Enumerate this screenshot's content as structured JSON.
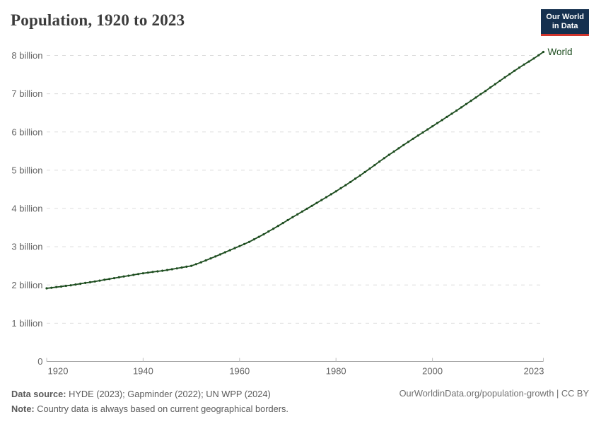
{
  "header": {
    "title": "Population, 1920 to 2023",
    "logo": {
      "line1": "Our World",
      "line2": "in Data",
      "bg_color": "#15304f",
      "accent_color": "#d0342c"
    }
  },
  "chart_data": {
    "type": "line",
    "title": "Population, 1920 to 2023",
    "xlabel": "",
    "ylabel": "",
    "xlim": [
      1920,
      2023
    ],
    "ylim": [
      0,
      8.3
    ],
    "grid": "horizontal-dashed",
    "legend_position": "end-of-line-label",
    "x_ticks": [
      {
        "value": 1920,
        "label": "1920"
      },
      {
        "value": 1940,
        "label": "1940"
      },
      {
        "value": 1960,
        "label": "1960"
      },
      {
        "value": 1980,
        "label": "1980"
      },
      {
        "value": 2000,
        "label": "2000"
      },
      {
        "value": 2023,
        "label": "2023"
      }
    ],
    "y_ticks": [
      {
        "value": 0,
        "label": "0"
      },
      {
        "value": 1,
        "label": "1 billion"
      },
      {
        "value": 2,
        "label": "2 billion"
      },
      {
        "value": 3,
        "label": "3 billion"
      },
      {
        "value": 4,
        "label": "4 billion"
      },
      {
        "value": 5,
        "label": "5 billion"
      },
      {
        "value": 6,
        "label": "6 billion"
      },
      {
        "value": 7,
        "label": "7 billion"
      },
      {
        "value": 8,
        "label": "8 billion"
      }
    ],
    "series": [
      {
        "name": "World",
        "color": "#1D4D1F",
        "unit": "billion",
        "x": [
          1920,
          1921,
          1922,
          1923,
          1924,
          1925,
          1926,
          1927,
          1928,
          1929,
          1930,
          1931,
          1932,
          1933,
          1934,
          1935,
          1936,
          1937,
          1938,
          1939,
          1940,
          1941,
          1942,
          1943,
          1944,
          1945,
          1946,
          1947,
          1948,
          1949,
          1950,
          1951,
          1952,
          1953,
          1954,
          1955,
          1956,
          1957,
          1958,
          1959,
          1960,
          1961,
          1962,
          1963,
          1964,
          1965,
          1966,
          1967,
          1968,
          1969,
          1970,
          1971,
          1972,
          1973,
          1974,
          1975,
          1976,
          1977,
          1978,
          1979,
          1980,
          1981,
          1982,
          1983,
          1984,
          1985,
          1986,
          1987,
          1988,
          1989,
          1990,
          1991,
          1992,
          1993,
          1994,
          1995,
          1996,
          1997,
          1998,
          1999,
          2000,
          2001,
          2002,
          2003,
          2004,
          2005,
          2006,
          2007,
          2008,
          2009,
          2010,
          2011,
          2012,
          2013,
          2014,
          2015,
          2016,
          2017,
          2018,
          2019,
          2020,
          2021,
          2022,
          2023
        ],
        "values": [
          1.912,
          1.927,
          1.943,
          1.959,
          1.976,
          1.992,
          2.012,
          2.032,
          2.052,
          2.072,
          2.092,
          2.114,
          2.136,
          2.157,
          2.179,
          2.201,
          2.222,
          2.243,
          2.264,
          2.285,
          2.306,
          2.323,
          2.34,
          2.356,
          2.373,
          2.39,
          2.411,
          2.433,
          2.455,
          2.477,
          2.499,
          2.545,
          2.592,
          2.642,
          2.693,
          2.746,
          2.8,
          2.855,
          2.909,
          2.962,
          3.015,
          3.07,
          3.126,
          3.192,
          3.258,
          3.324,
          3.397,
          3.47,
          3.544,
          3.619,
          3.695,
          3.77,
          3.845,
          3.92,
          3.995,
          4.069,
          4.144,
          4.22,
          4.295,
          4.371,
          4.447,
          4.528,
          4.61,
          4.693,
          4.777,
          4.861,
          4.951,
          5.042,
          5.133,
          5.225,
          5.316,
          5.402,
          5.488,
          5.573,
          5.658,
          5.743,
          5.824,
          5.905,
          5.987,
          6.068,
          6.149,
          6.231,
          6.312,
          6.394,
          6.476,
          6.558,
          6.644,
          6.729,
          6.815,
          6.901,
          6.987,
          7.073,
          7.161,
          7.25,
          7.339,
          7.426,
          7.513,
          7.6,
          7.683,
          7.764,
          7.841,
          7.921,
          8.005,
          8.092
        ]
      }
    ]
  },
  "footer": {
    "source_label": "Data source:",
    "source_text": " HYDE (2023); Gapminder (2022); UN WPP (2024)",
    "note_label": "Note:",
    "note_text": " Country data is always based on current geographical borders.",
    "link": "OurWorldinData.org/population-growth | CC BY"
  }
}
